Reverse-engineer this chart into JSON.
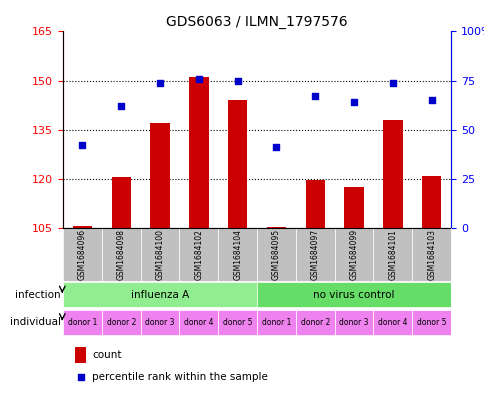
{
  "title": "GDS6063 / ILMN_1797576",
  "samples": [
    "GSM1684096",
    "GSM1684098",
    "GSM1684100",
    "GSM1684102",
    "GSM1684104",
    "GSM1684095",
    "GSM1684097",
    "GSM1684099",
    "GSM1684101",
    "GSM1684103"
  ],
  "counts": [
    105.5,
    120.5,
    137.0,
    151.0,
    144.0,
    105.2,
    119.5,
    117.5,
    138.0,
    121.0
  ],
  "percentiles": [
    42,
    62,
    74,
    76,
    75,
    41,
    67,
    64,
    74,
    65
  ],
  "ylim_left": [
    105,
    165
  ],
  "ylim_right": [
    0,
    100
  ],
  "yticks_left": [
    105,
    120,
    135,
    150,
    165
  ],
  "yticks_right": [
    0,
    25,
    50,
    75,
    100
  ],
  "infection_groups": [
    {
      "label": "influenza A",
      "start": 0,
      "end": 5,
      "color": "#90EE90"
    },
    {
      "label": "no virus control",
      "start": 5,
      "end": 10,
      "color": "#66DD66"
    }
  ],
  "donors": [
    "donor 1",
    "donor 2",
    "donor 3",
    "donor 4",
    "donor 5",
    "donor 1",
    "donor 2",
    "donor 3",
    "donor 4",
    "donor 5"
  ],
  "donor_colors": [
    "#EE82EE",
    "#EE82EE",
    "#EE82EE",
    "#EE82EE",
    "#EE82EE",
    "#EE82EE",
    "#EE82EE",
    "#EE82EE",
    "#EE82EE",
    "#EE82EE"
  ],
  "bar_color": "#CC0000",
  "dot_color": "#0000CC",
  "bar_bottom": 105,
  "grid_color": "#000000",
  "label_count": "count",
  "label_percentile": "percentile rank within the sample",
  "infection_label": "infection",
  "individual_label": "individual",
  "background_color": "#ffffff",
  "sample_bg_color": "#C0C0C0"
}
